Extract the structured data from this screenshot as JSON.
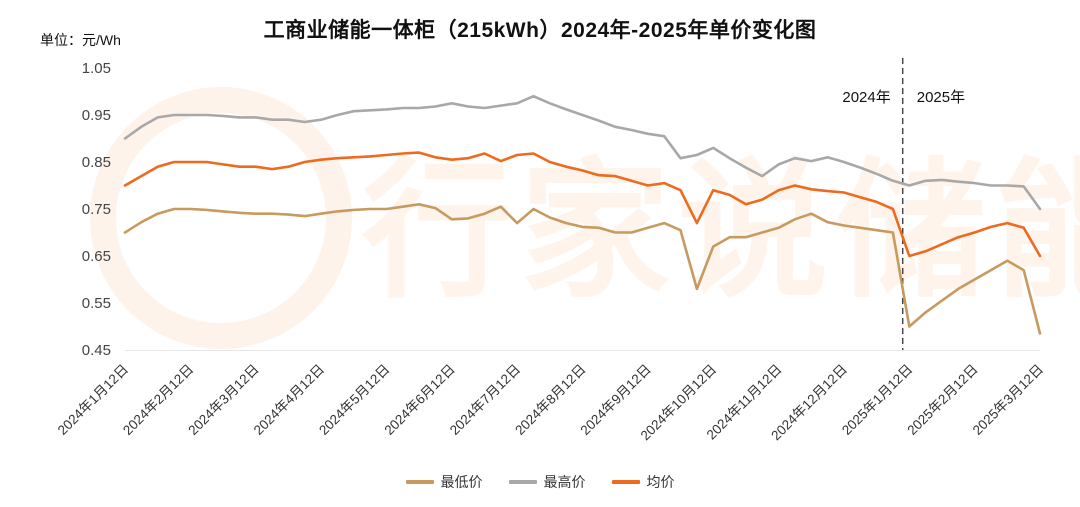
{
  "chart": {
    "title": "工商业储能一体柜（215kWh）2024年-2025年单价变化图",
    "unit_label": "单位：元/Wh",
    "watermark": "行家说储能",
    "divider": {
      "label_left": "2024年",
      "label_right": "2025年",
      "index": 47.6
    }
  },
  "chart_data": {
    "type": "line",
    "title": "工商业储能一体柜（215kWh）2024年-2025年单价变化图",
    "ylabel": "单位：元/Wh",
    "ylim": [
      0.45,
      1.05
    ],
    "yticks": [
      0.45,
      0.55,
      0.65,
      0.75,
      0.85,
      0.95,
      1.05
    ],
    "grid": false,
    "legend_position": "bottom",
    "categories": [
      "2024年1月12日",
      "2024年2月12日",
      "2024年3月12日",
      "2024年4月12日",
      "2024年5月12日",
      "2024年6月12日",
      "2024年7月12日",
      "2024年8月12日",
      "2024年9月12日",
      "2024年10月12日",
      "2024年11月12日",
      "2024年12月12日",
      "2025年1月12日",
      "2025年2月12日",
      "2025年3月12日"
    ],
    "points_per_interval": 4,
    "series": [
      {
        "name": "最低价",
        "color": "#C79A5F",
        "values": [
          0.7,
          0.722,
          0.74,
          0.75,
          0.75,
          0.748,
          0.745,
          0.742,
          0.74,
          0.74,
          0.738,
          0.735,
          0.74,
          0.745,
          0.748,
          0.75,
          0.75,
          0.755,
          0.76,
          0.752,
          0.728,
          0.73,
          0.74,
          0.755,
          0.72,
          0.75,
          0.732,
          0.72,
          0.712,
          0.71,
          0.7,
          0.7,
          0.71,
          0.72,
          0.705,
          0.58,
          0.67,
          0.69,
          0.69,
          0.7,
          0.71,
          0.728,
          0.74,
          0.722,
          0.715,
          0.71,
          0.705,
          0.7,
          0.5,
          0.53,
          0.555,
          0.58,
          0.6,
          0.62,
          0.64,
          0.62,
          0.485
        ]
      },
      {
        "name": "最高价",
        "color": "#A8A8A8",
        "values": [
          0.9,
          0.925,
          0.945,
          0.95,
          0.95,
          0.95,
          0.948,
          0.945,
          0.945,
          0.94,
          0.94,
          0.935,
          0.94,
          0.95,
          0.958,
          0.96,
          0.962,
          0.965,
          0.965,
          0.968,
          0.975,
          0.968,
          0.965,
          0.97,
          0.975,
          0.99,
          0.975,
          0.962,
          0.95,
          0.938,
          0.925,
          0.918,
          0.91,
          0.905,
          0.858,
          0.865,
          0.88,
          0.858,
          0.838,
          0.82,
          0.845,
          0.858,
          0.852,
          0.86,
          0.85,
          0.838,
          0.825,
          0.81,
          0.8,
          0.81,
          0.812,
          0.808,
          0.805,
          0.8,
          0.8,
          0.798,
          0.75
        ]
      },
      {
        "name": "均价",
        "color": "#ED6A1E",
        "values": [
          0.8,
          0.82,
          0.84,
          0.85,
          0.85,
          0.85,
          0.845,
          0.84,
          0.84,
          0.835,
          0.84,
          0.85,
          0.855,
          0.858,
          0.86,
          0.862,
          0.865,
          0.868,
          0.87,
          0.86,
          0.855,
          0.858,
          0.868,
          0.852,
          0.865,
          0.868,
          0.85,
          0.84,
          0.832,
          0.822,
          0.82,
          0.81,
          0.8,
          0.805,
          0.79,
          0.72,
          0.79,
          0.78,
          0.76,
          0.77,
          0.79,
          0.8,
          0.792,
          0.788,
          0.785,
          0.775,
          0.765,
          0.75,
          0.65,
          0.66,
          0.675,
          0.69,
          0.7,
          0.712,
          0.72,
          0.71,
          0.65
        ]
      }
    ]
  }
}
